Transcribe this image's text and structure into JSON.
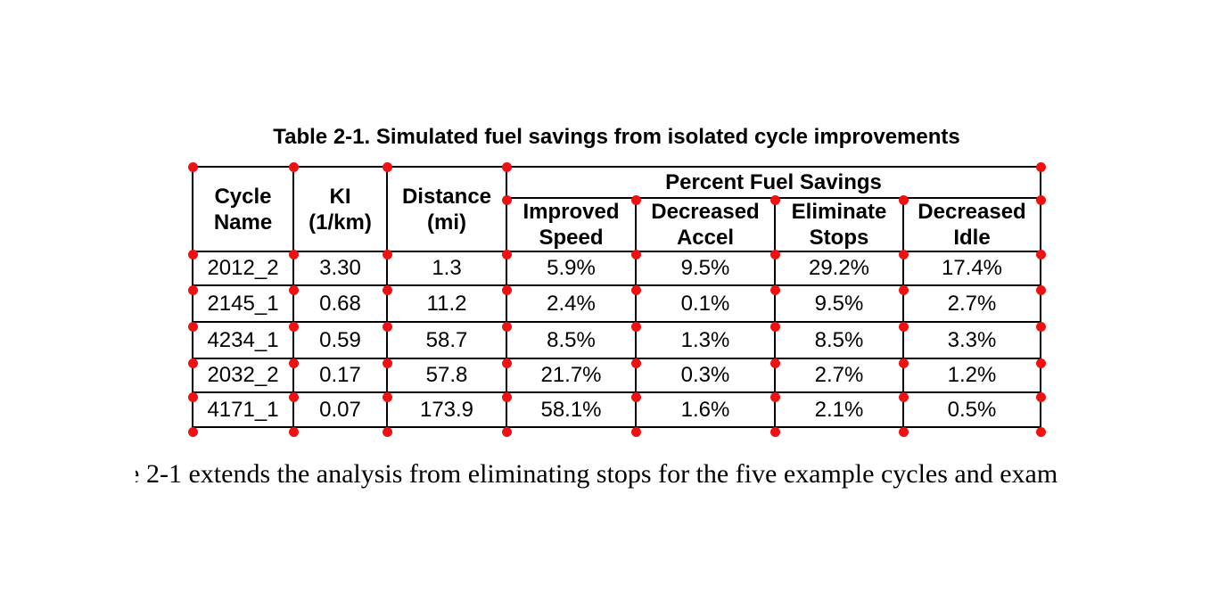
{
  "annotations": {
    "marker_color": "#ee1111"
  },
  "caption": "Table 2-1. Simulated fuel savings from isolated cycle improvements",
  "table": {
    "column_headers": {
      "cycle_name": "Cycle\nName",
      "ki": "KI\n(1/km)",
      "distance": "Distance\n(mi)"
    },
    "group_header": "Percent Fuel Savings",
    "sub_headers": {
      "improved_speed": "Improved\nSpeed",
      "decreased_accel": "Decreased\nAccel",
      "eliminate_stops": "Eliminate\nStops",
      "decreased_idle": "Decreased\nIdle"
    },
    "rows": [
      {
        "cycle_name": "2012_2",
        "ki": "3.30",
        "distance": "1.3",
        "improved_speed": "5.9%",
        "decreased_accel": "9.5%",
        "eliminate_stops": "29.2%",
        "decreased_idle": "17.4%"
      },
      {
        "cycle_name": "2145_1",
        "ki": "0.68",
        "distance": "11.2",
        "improved_speed": "2.4%",
        "decreased_accel": "0.1%",
        "eliminate_stops": "9.5%",
        "decreased_idle": "2.7%"
      },
      {
        "cycle_name": "4234_1",
        "ki": "0.59",
        "distance": "58.7",
        "improved_speed": "8.5%",
        "decreased_accel": "1.3%",
        "eliminate_stops": "8.5%",
        "decreased_idle": "3.3%"
      },
      {
        "cycle_name": "2032_2",
        "ki": "0.17",
        "distance": "57.8",
        "improved_speed": "21.7%",
        "decreased_accel": "0.3%",
        "eliminate_stops": "2.7%",
        "decreased_idle": "1.2%"
      },
      {
        "cycle_name": "4171_1",
        "ki": "0.07",
        "distance": "173.9",
        "improved_speed": "58.1%",
        "decreased_accel": "1.6%",
        "eliminate_stops": "2.1%",
        "decreased_idle": "0.5%"
      }
    ]
  },
  "body": {
    "leading_fragment": "e",
    "text": "2-1 extends the analysis from eliminating stops for the five example cycles and exam"
  }
}
